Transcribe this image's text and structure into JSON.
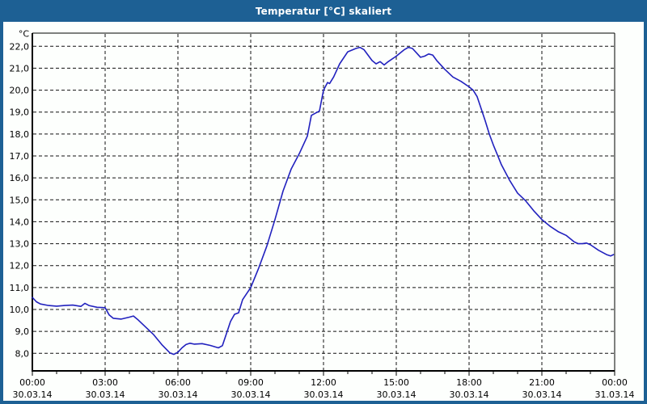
{
  "window": {
    "title": "Temperatur [°C] skaliert",
    "titlebar_color": "#1d6094",
    "content_background": "#fdfffd"
  },
  "chart_data": {
    "type": "line",
    "title": "Temperatur [°C] skaliert",
    "unit_label": "°C",
    "line_color": "#2121be",
    "grid_color": "#111111",
    "axis_color": "#000000",
    "grid": "dashed",
    "legend_position": "none",
    "y_axis": {
      "min": 7.2,
      "max": 22.6,
      "grid_from": 8,
      "grid_to": 22,
      "grid_step": 1,
      "tick_labels": [
        "22,0",
        "21,0",
        "20,0",
        "19,0",
        "18,0",
        "17,0",
        "16,0",
        "15,0",
        "14,0",
        "13,0",
        "12,0",
        "11,0",
        "10,0",
        "9,0",
        "8,0"
      ]
    },
    "x_axis": {
      "total_hours": 24,
      "minor_tick_hours": 1,
      "major_tick_hours": 3,
      "tick_labels": [
        {
          "time": "00:00",
          "date": "30.03.14"
        },
        {
          "time": "03:00",
          "date": "30.03.14"
        },
        {
          "time": "06:00",
          "date": "30.03.14"
        },
        {
          "time": "09:00",
          "date": "30.03.14"
        },
        {
          "time": "12:00",
          "date": "30.03.14"
        },
        {
          "time": "15:00",
          "date": "30.03.14"
        },
        {
          "time": "18:00",
          "date": "30.03.14"
        },
        {
          "time": "21:00",
          "date": "30.03.14"
        },
        {
          "time": "00:00",
          "date": "31.03.14"
        }
      ]
    },
    "series": [
      {
        "name": "Temperatur",
        "unit": "°C",
        "points_minutes_temp": [
          [
            0,
            10.55
          ],
          [
            10,
            10.35
          ],
          [
            20,
            10.25
          ],
          [
            40,
            10.18
          ],
          [
            60,
            10.15
          ],
          [
            80,
            10.18
          ],
          [
            100,
            10.2
          ],
          [
            120,
            10.14
          ],
          [
            130,
            10.28
          ],
          [
            140,
            10.18
          ],
          [
            160,
            10.1
          ],
          [
            180,
            10.08
          ],
          [
            190,
            9.75
          ],
          [
            200,
            9.6
          ],
          [
            220,
            9.56
          ],
          [
            240,
            9.65
          ],
          [
            250,
            9.7
          ],
          [
            260,
            9.55
          ],
          [
            280,
            9.2
          ],
          [
            300,
            8.85
          ],
          [
            320,
            8.4
          ],
          [
            340,
            8.02
          ],
          [
            350,
            7.95
          ],
          [
            360,
            8.05
          ],
          [
            370,
            8.25
          ],
          [
            380,
            8.4
          ],
          [
            390,
            8.46
          ],
          [
            400,
            8.42
          ],
          [
            420,
            8.44
          ],
          [
            440,
            8.36
          ],
          [
            460,
            8.25
          ],
          [
            470,
            8.35
          ],
          [
            480,
            8.9
          ],
          [
            490,
            9.45
          ],
          [
            500,
            9.78
          ],
          [
            510,
            9.85
          ],
          [
            520,
            10.45
          ],
          [
            540,
            11.0
          ],
          [
            560,
            11.9
          ],
          [
            580,
            12.9
          ],
          [
            600,
            14.1
          ],
          [
            620,
            15.4
          ],
          [
            640,
            16.4
          ],
          [
            660,
            17.1
          ],
          [
            670,
            17.5
          ],
          [
            680,
            17.9
          ],
          [
            690,
            18.85
          ],
          [
            700,
            18.95
          ],
          [
            710,
            19.05
          ],
          [
            720,
            20.0
          ],
          [
            730,
            20.35
          ],
          [
            735,
            20.3
          ],
          [
            745,
            20.6
          ],
          [
            760,
            21.2
          ],
          [
            780,
            21.75
          ],
          [
            800,
            21.9
          ],
          [
            810,
            21.95
          ],
          [
            820,
            21.85
          ],
          [
            830,
            21.6
          ],
          [
            840,
            21.35
          ],
          [
            850,
            21.2
          ],
          [
            860,
            21.3
          ],
          [
            870,
            21.15
          ],
          [
            880,
            21.3
          ],
          [
            900,
            21.55
          ],
          [
            920,
            21.85
          ],
          [
            930,
            21.95
          ],
          [
            940,
            21.9
          ],
          [
            950,
            21.7
          ],
          [
            960,
            21.5
          ],
          [
            970,
            21.55
          ],
          [
            980,
            21.65
          ],
          [
            990,
            21.6
          ],
          [
            1000,
            21.35
          ],
          [
            1020,
            20.95
          ],
          [
            1040,
            20.6
          ],
          [
            1060,
            20.4
          ],
          [
            1080,
            20.15
          ],
          [
            1090,
            20.0
          ],
          [
            1100,
            19.7
          ],
          [
            1110,
            19.15
          ],
          [
            1120,
            18.6
          ],
          [
            1130,
            18.0
          ],
          [
            1140,
            17.5
          ],
          [
            1150,
            17.05
          ],
          [
            1160,
            16.6
          ],
          [
            1170,
            16.25
          ],
          [
            1180,
            15.9
          ],
          [
            1200,
            15.3
          ],
          [
            1220,
            14.95
          ],
          [
            1240,
            14.5
          ],
          [
            1260,
            14.1
          ],
          [
            1280,
            13.8
          ],
          [
            1300,
            13.55
          ],
          [
            1320,
            13.38
          ],
          [
            1340,
            13.08
          ],
          [
            1350,
            13.0
          ],
          [
            1360,
            13.0
          ],
          [
            1370,
            13.03
          ],
          [
            1380,
            12.95
          ],
          [
            1400,
            12.7
          ],
          [
            1420,
            12.5
          ],
          [
            1430,
            12.44
          ],
          [
            1437,
            12.5
          ]
        ]
      }
    ]
  }
}
